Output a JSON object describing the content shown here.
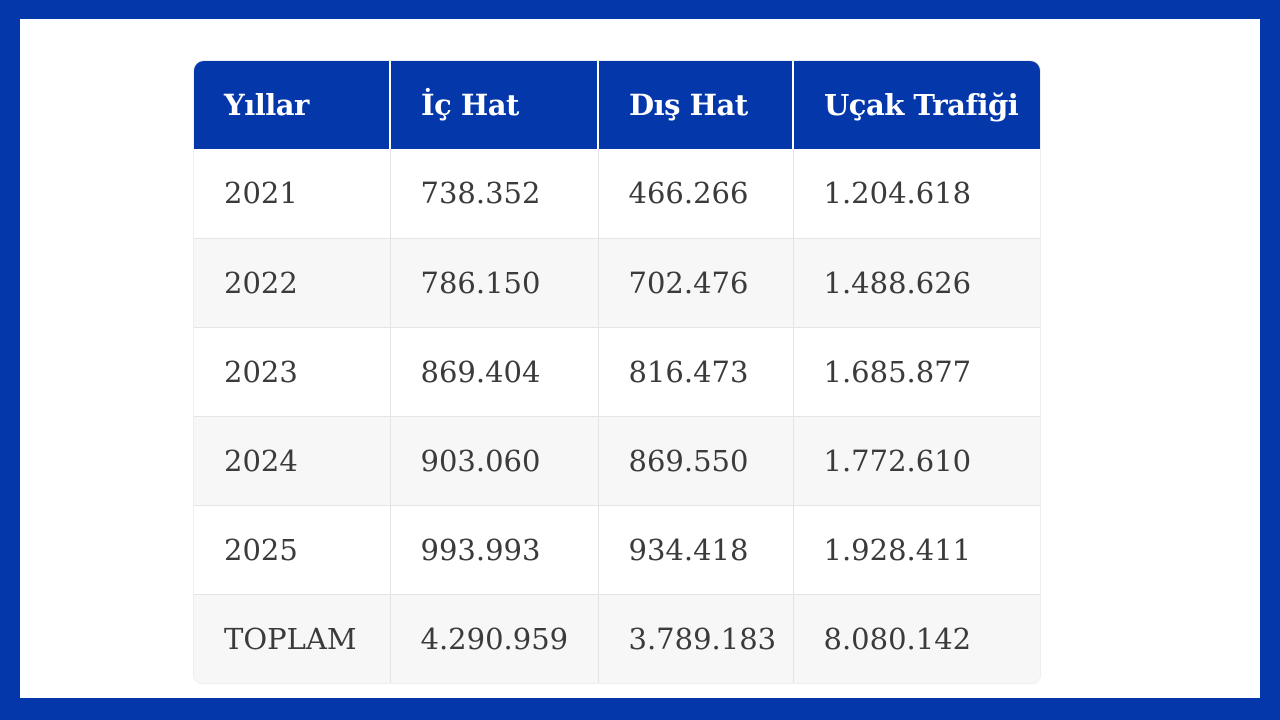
{
  "table": {
    "headers": [
      "Yıllar",
      "İç Hat",
      "Dış Hat",
      "Uçak Trafiği"
    ],
    "rows": [
      [
        "2021",
        "738.352",
        "466.266",
        "1.204.618"
      ],
      [
        "2022",
        "786.150",
        "702.476",
        "1.488.626"
      ],
      [
        "2023",
        "869.404",
        "816.473",
        "1.685.877"
      ],
      [
        "2024",
        "903.060",
        "869.550",
        "1.772.610"
      ],
      [
        "2025",
        "993.993",
        "934.418",
        "1.928.411"
      ],
      [
        "TOPLAM",
        "4.290.959",
        "3.789.183",
        "8.080.142"
      ]
    ]
  },
  "colors": {
    "frame": "#0437aa",
    "header_bg": "#0437aa",
    "header_text": "#ffffff",
    "row_alt_bg": "#f7f7f7",
    "cell_text": "#3b3b3b"
  }
}
